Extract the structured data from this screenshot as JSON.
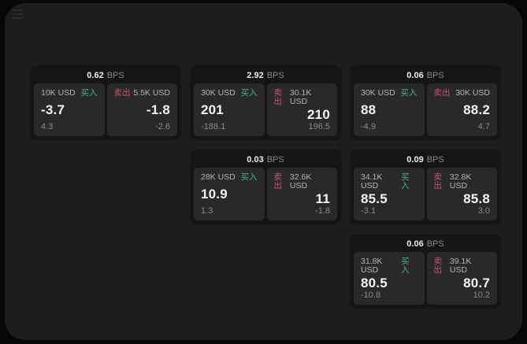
{
  "colors": {
    "buy_green": "#4db380",
    "sell_red": "#c9556a",
    "window_bg": "#1d1d1e",
    "card_bg": "#151516",
    "panel_bg": "#29292b"
  },
  "menu": {
    "icon": "hamburger-icon"
  },
  "cards": [
    {
      "bps": "0.62",
      "bps_unit": "BPS",
      "buy": {
        "amount": "10K USD",
        "label": "买入",
        "value": "-3.7",
        "sub": "4.3"
      },
      "sell": {
        "label": "卖出",
        "amount": "5.5K USD",
        "value": "-1.8",
        "sub": "-2.6"
      }
    },
    {
      "bps": "2.92",
      "bps_unit": "BPS",
      "buy": {
        "amount": "30K USD",
        "label": "买入",
        "value": "201",
        "sub": "-188.1"
      },
      "sell": {
        "label": "卖出",
        "amount": "30.1K USD",
        "value": "210",
        "sub": "196.5"
      }
    },
    {
      "bps": "0.06",
      "bps_unit": "BPS",
      "buy": {
        "amount": "30K USD",
        "label": "买入",
        "value": "88",
        "sub": "-4.9"
      },
      "sell": {
        "label": "卖出",
        "amount": "30K USD",
        "value": "88.2",
        "sub": "4.7"
      }
    },
    {
      "bps": "0.03",
      "bps_unit": "BPS",
      "buy": {
        "amount": "28K USD",
        "label": "买入",
        "value": "10.9",
        "sub": "1.3"
      },
      "sell": {
        "label": "卖出",
        "amount": "32.6K USD",
        "value": "11",
        "sub": "-1.8"
      }
    },
    {
      "bps": "0.09",
      "bps_unit": "BPS",
      "buy": {
        "amount": "34.1K USD",
        "label": "买入",
        "value": "85.5",
        "sub": "-3.1"
      },
      "sell": {
        "label": "卖出",
        "amount": "32.8K USD",
        "value": "85.8",
        "sub": "3.0"
      }
    },
    {
      "bps": "0.06",
      "bps_unit": "BPS",
      "buy": {
        "amount": "31.8K USD",
        "label": "买入",
        "value": "80.5",
        "sub": "-10.8"
      },
      "sell": {
        "label": "卖出",
        "amount": "39.1K USD",
        "value": "80.7",
        "sub": "10.2"
      }
    }
  ]
}
